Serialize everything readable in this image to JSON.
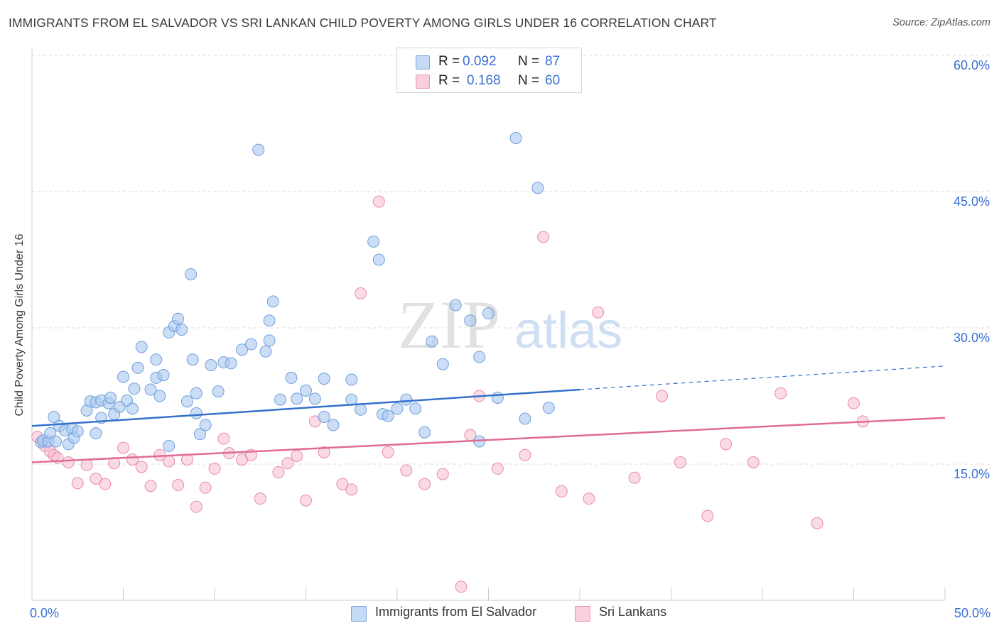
{
  "title": "IMMIGRANTS FROM EL SALVADOR VS SRI LANKAN CHILD POVERTY AMONG GIRLS UNDER 16 CORRELATION CHART",
  "source": "Source: ZipAtlas.com",
  "watermark": {
    "zip": "ZIP",
    "atlas": "atlas"
  },
  "legend": {
    "rows": [
      {
        "r_label": "R =",
        "r_value": "0.092",
        "n_label": "N =",
        "n_value": "87"
      },
      {
        "r_label": "R =",
        "r_value": "0.168",
        "n_label": "N =",
        "n_value": "60"
      }
    ]
  },
  "colors": {
    "blue_fill": "#a9c8ef",
    "blue_stroke": "#6f9fdc",
    "blue_line": "#3571cc",
    "pink_fill": "#f6bdd0",
    "pink_stroke": "#e88aab",
    "pink_line": "#e06b95",
    "tick_label": "#3a6fd1",
    "grid": "#dddddd"
  },
  "chart_data": {
    "type": "scatter",
    "title": "IMMIGRANTS FROM EL SALVADOR VS SRI LANKAN CHILD POVERTY AMONG GIRLS UNDER 16 CORRELATION CHART",
    "xlabel": "",
    "ylabel": "Child Poverty Among Girls Under 16",
    "xlim": [
      0,
      50
    ],
    "ylim": [
      0,
      60
    ],
    "x_tick_labels": [
      "0.0%",
      "50.0%"
    ],
    "y_ticks": [
      15,
      30,
      45,
      60
    ],
    "y_tick_labels": [
      "15.0%",
      "30.0%",
      "45.0%",
      "60.0%"
    ],
    "grid": "horizontal dashed",
    "legend_position": "top-center",
    "series": [
      {
        "name": "Immigrants from El Salvador",
        "R": 0.092,
        "N": 87,
        "trend": {
          "x": [
            0,
            30
          ],
          "y": [
            19.2,
            23.2
          ],
          "dashed_to": {
            "x": 50,
            "y": 25.8
          }
        },
        "points": [
          [
            0.5,
            17.4
          ],
          [
            0.6,
            17.6
          ],
          [
            0.9,
            17.5
          ],
          [
            1.0,
            18.4
          ],
          [
            1.2,
            20.2
          ],
          [
            1.3,
            17.5
          ],
          [
            1.5,
            19.2
          ],
          [
            1.8,
            18.7
          ],
          [
            2.0,
            17.2
          ],
          [
            2.2,
            18.9
          ],
          [
            2.3,
            17.9
          ],
          [
            2.5,
            18.6
          ],
          [
            3.0,
            20.9
          ],
          [
            3.2,
            21.9
          ],
          [
            3.5,
            21.8
          ],
          [
            3.5,
            18.4
          ],
          [
            3.8,
            22.0
          ],
          [
            3.8,
            20.1
          ],
          [
            4.2,
            21.7
          ],
          [
            4.3,
            22.3
          ],
          [
            4.5,
            20.5
          ],
          [
            4.8,
            21.3
          ],
          [
            5.0,
            24.6
          ],
          [
            5.2,
            22.0
          ],
          [
            5.5,
            21.1
          ],
          [
            5.6,
            23.3
          ],
          [
            5.8,
            25.6
          ],
          [
            6.0,
            27.9
          ],
          [
            6.5,
            23.2
          ],
          [
            6.8,
            24.5
          ],
          [
            6.8,
            26.5
          ],
          [
            7.0,
            22.5
          ],
          [
            7.2,
            24.8
          ],
          [
            7.5,
            29.5
          ],
          [
            7.5,
            17.0
          ],
          [
            7.8,
            30.2
          ],
          [
            8.0,
            31.0
          ],
          [
            8.2,
            29.8
          ],
          [
            8.5,
            21.9
          ],
          [
            8.7,
            35.9
          ],
          [
            8.8,
            26.5
          ],
          [
            9.0,
            22.8
          ],
          [
            9.0,
            20.6
          ],
          [
            9.2,
            18.3
          ],
          [
            9.5,
            19.3
          ],
          [
            9.8,
            25.9
          ],
          [
            10.2,
            23.0
          ],
          [
            10.5,
            26.2
          ],
          [
            10.9,
            26.1
          ],
          [
            11.5,
            27.6
          ],
          [
            12.0,
            28.2
          ],
          [
            12.4,
            49.6
          ],
          [
            12.8,
            27.4
          ],
          [
            13.0,
            28.6
          ],
          [
            13.0,
            30.8
          ],
          [
            13.2,
            32.9
          ],
          [
            13.6,
            22.1
          ],
          [
            14.2,
            24.5
          ],
          [
            14.5,
            22.2
          ],
          [
            15.0,
            23.1
          ],
          [
            15.5,
            22.2
          ],
          [
            16.0,
            20.2
          ],
          [
            16.0,
            24.4
          ],
          [
            16.5,
            19.3
          ],
          [
            17.5,
            24.3
          ],
          [
            17.5,
            22.1
          ],
          [
            18.0,
            21.0
          ],
          [
            18.7,
            39.5
          ],
          [
            19.0,
            37.5
          ],
          [
            19.2,
            20.5
          ],
          [
            19.5,
            20.3
          ],
          [
            20.0,
            21.1
          ],
          [
            20.5,
            22.1
          ],
          [
            21.0,
            21.1
          ],
          [
            21.5,
            18.5
          ],
          [
            21.9,
            28.5
          ],
          [
            22.5,
            26.0
          ],
          [
            23.2,
            32.5
          ],
          [
            24.0,
            30.8
          ],
          [
            24.5,
            26.8
          ],
          [
            24.5,
            17.5
          ],
          [
            25.0,
            31.6
          ],
          [
            25.5,
            22.3
          ],
          [
            26.5,
            50.9
          ],
          [
            27.0,
            20.0
          ],
          [
            27.7,
            45.4
          ],
          [
            28.3,
            21.2
          ]
        ]
      },
      {
        "name": "Sri Lankans",
        "R": 0.168,
        "N": 60,
        "trend": {
          "x": [
            0,
            50
          ],
          "y": [
            15.2,
            20.1
          ]
        },
        "points": [
          [
            0.3,
            18.0
          ],
          [
            0.7,
            17.0
          ],
          [
            1.0,
            16.4
          ],
          [
            1.2,
            16.0
          ],
          [
            1.4,
            15.7
          ],
          [
            2.0,
            15.2
          ],
          [
            2.5,
            12.9
          ],
          [
            3.0,
            14.9
          ],
          [
            3.5,
            13.4
          ],
          [
            4.0,
            12.8
          ],
          [
            4.5,
            15.1
          ],
          [
            5.0,
            16.8
          ],
          [
            5.5,
            15.5
          ],
          [
            6.0,
            14.7
          ],
          [
            6.5,
            12.6
          ],
          [
            7.0,
            16.0
          ],
          [
            7.5,
            15.3
          ],
          [
            8.0,
            12.7
          ],
          [
            8.5,
            15.5
          ],
          [
            9.0,
            10.3
          ],
          [
            9.5,
            12.4
          ],
          [
            10.0,
            14.5
          ],
          [
            10.5,
            17.8
          ],
          [
            10.8,
            16.2
          ],
          [
            11.5,
            15.5
          ],
          [
            12.0,
            16.0
          ],
          [
            12.5,
            11.2
          ],
          [
            13.5,
            14.1
          ],
          [
            14.0,
            15.1
          ],
          [
            14.5,
            15.9
          ],
          [
            15.0,
            11.0
          ],
          [
            15.5,
            19.7
          ],
          [
            16.0,
            16.3
          ],
          [
            17.0,
            12.8
          ],
          [
            17.5,
            12.2
          ],
          [
            18.0,
            33.8
          ],
          [
            19.0,
            43.9
          ],
          [
            19.5,
            16.3
          ],
          [
            20.5,
            14.3
          ],
          [
            21.5,
            12.8
          ],
          [
            22.5,
            13.9
          ],
          [
            23.5,
            1.5
          ],
          [
            24.0,
            18.2
          ],
          [
            24.5,
            22.5
          ],
          [
            25.5,
            14.5
          ],
          [
            27.0,
            16.0
          ],
          [
            28.0,
            40.0
          ],
          [
            29.0,
            12.0
          ],
          [
            30.5,
            11.2
          ],
          [
            31.0,
            31.7
          ],
          [
            33.0,
            13.5
          ],
          [
            34.5,
            22.5
          ],
          [
            35.5,
            15.2
          ],
          [
            37.0,
            9.3
          ],
          [
            38.0,
            17.2
          ],
          [
            39.5,
            15.2
          ],
          [
            41.0,
            22.8
          ],
          [
            43.0,
            8.5
          ],
          [
            45.0,
            21.7
          ],
          [
            45.5,
            19.7
          ]
        ]
      }
    ]
  }
}
